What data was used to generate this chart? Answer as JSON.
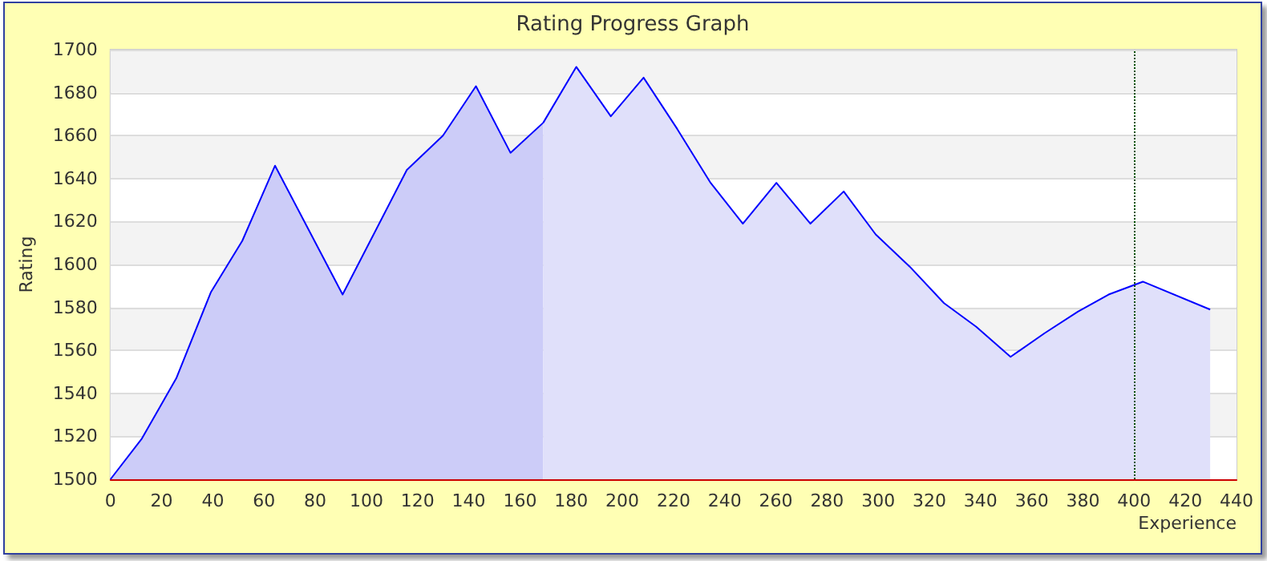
{
  "chart_data": {
    "type": "area",
    "title": "Rating Progress Graph",
    "xlabel": "Experience",
    "ylabel": "Rating",
    "series": [
      {
        "color": "#ccccf8",
        "x": [
          0,
          12.3,
          25.7,
          39.2,
          51.5,
          64.3,
          90.7,
          115.8,
          129.9,
          142.8,
          156.3,
          169.1
        ],
        "values": [
          1500,
          1519,
          1547,
          1587,
          1611,
          1646,
          1586,
          1644,
          1660,
          1683,
          1652,
          1666
        ]
      },
      {
        "color": "#e0e0fa",
        "x": [
          169.1,
          182,
          195.5,
          208.3,
          221.5,
          234.5,
          247.1,
          260.2,
          273.5,
          286.5,
          299,
          312.3,
          325.7,
          338.3,
          351.7,
          365,
          378,
          390,
          403.4,
          429.7
        ],
        "values": [
          1666,
          1692,
          1669,
          1687,
          1663,
          1638,
          1619,
          1638,
          1619,
          1634,
          1614,
          1599,
          1582,
          1571,
          1557,
          1568,
          1578,
          1586,
          1592,
          1579
        ]
      }
    ],
    "xlim": [
      0,
      440
    ],
    "xticks": [
      0,
      20,
      40,
      60,
      80,
      100,
      120,
      140,
      160,
      180,
      200,
      220,
      240,
      260,
      280,
      300,
      320,
      340,
      360,
      380,
      400,
      420,
      440
    ],
    "ylim": [
      1500,
      1700
    ],
    "yticks": [
      1500,
      1520,
      1540,
      1560,
      1580,
      1600,
      1620,
      1640,
      1660,
      1680,
      1700
    ],
    "ref_lines": [
      {
        "axis": "x",
        "value": 400,
        "color": "#005000",
        "line_style": "dotted"
      }
    ],
    "grid": "y",
    "marker": "none",
    "line_style": "solid"
  }
}
